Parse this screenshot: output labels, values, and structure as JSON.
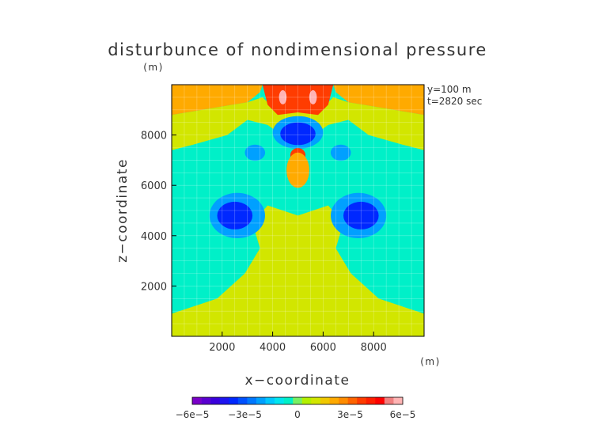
{
  "chart_data": {
    "type": "heatmap",
    "title": "disturbunce of nondimensional pressure",
    "xlabel": "x−coordinate",
    "ylabel": "z−coordinate",
    "x_unit": "(m)",
    "y_unit": "(m)",
    "annotations": [
      "y=100 m",
      "t=2820 sec"
    ],
    "xlim": [
      0,
      10000
    ],
    "ylim": [
      0,
      10000
    ],
    "x_ticks": [
      2000,
      4000,
      6000,
      8000
    ],
    "y_ticks": [
      2000,
      4000,
      6000,
      8000
    ],
    "x_tick_labels": [
      "2000",
      "4000",
      "6000",
      "8000"
    ],
    "y_tick_labels": [
      "2000",
      "4000",
      "6000",
      "8000"
    ],
    "grid": true,
    "colorbar": {
      "placement": "bottom",
      "levels": [
        -6e-05,
        -5.5e-05,
        -5e-05,
        -4.5e-05,
        -4e-05,
        -3.5e-05,
        -3e-05,
        -2.5e-05,
        -2e-05,
        -1.5e-05,
        -1e-05,
        -5e-06,
        0,
        5e-06,
        1e-05,
        1.5e-05,
        2e-05,
        2.5e-05,
        3e-05,
        3.5e-05,
        4e-05,
        4.5e-05,
        5e-05,
        5.5e-05,
        6e-05
      ],
      "colors": [
        "#7a00c8",
        "#5a00d0",
        "#3a00dc",
        "#1e14f0",
        "#0028ff",
        "#0050ff",
        "#0078ff",
        "#00a0ff",
        "#00c8ff",
        "#00e6f0",
        "#00f0c8",
        "#78f064",
        "#b4f000",
        "#d2e600",
        "#f0c800",
        "#ffaa00",
        "#ff8c00",
        "#ff6400",
        "#ff3c00",
        "#ff1e00",
        "#ff0000",
        "#f08080",
        "#ffb4b4"
      ],
      "tick_values": [
        -6e-05,
        -3e-05,
        0,
        3e-05,
        6e-05
      ],
      "tick_labels": [
        "−6e−5",
        "−3e−5",
        "0",
        "3e−5",
        "6e−5"
      ]
    },
    "regions": [
      {
        "name": "lime-bottom",
        "value": 5e-06,
        "shape": "polygon",
        "points": [
          [
            0,
            0
          ],
          [
            10000,
            0
          ],
          [
            10000,
            900
          ],
          [
            8200,
            1500
          ],
          [
            7100,
            2500
          ],
          [
            6500,
            3500
          ],
          [
            6800,
            4500
          ],
          [
            6200,
            5200
          ],
          [
            5600,
            5000
          ],
          [
            5000,
            4800
          ],
          [
            4400,
            5000
          ],
          [
            3800,
            5200
          ],
          [
            3200,
            4500
          ],
          [
            3500,
            3500
          ],
          [
            2900,
            2500
          ],
          [
            1800,
            1500
          ],
          [
            0,
            900
          ]
        ]
      },
      {
        "name": "lime-top",
        "value": 5e-06,
        "shape": "polygon",
        "points": [
          [
            0,
            7400
          ],
          [
            800,
            7600
          ],
          [
            2200,
            8000
          ],
          [
            3000,
            8600
          ],
          [
            3800,
            8400
          ],
          [
            4500,
            7900
          ],
          [
            5000,
            7500
          ],
          [
            5500,
            7900
          ],
          [
            6200,
            8400
          ],
          [
            7000,
            8600
          ],
          [
            7800,
            8000
          ],
          [
            9200,
            7600
          ],
          [
            10000,
            7400
          ],
          [
            10000,
            8800
          ],
          [
            8800,
            9000
          ],
          [
            7000,
            9300
          ],
          [
            6400,
            9500
          ],
          [
            6000,
            9100
          ],
          [
            5000,
            9200
          ],
          [
            4000,
            9100
          ],
          [
            3600,
            9500
          ],
          [
            3000,
            9300
          ],
          [
            1200,
            9000
          ],
          [
            0,
            8800
          ]
        ]
      },
      {
        "name": "orange-top",
        "value": 1.75e-05,
        "shape": "polygon",
        "points": [
          [
            0,
            8800
          ],
          [
            1200,
            9000
          ],
          [
            3000,
            9300
          ],
          [
            3500,
            9700
          ],
          [
            3600,
            10000
          ],
          [
            0,
            10000
          ]
        ]
      },
      {
        "name": "orange-top-right",
        "value": 1.75e-05,
        "shape": "polygon",
        "points": [
          [
            10000,
            8800
          ],
          [
            8800,
            9000
          ],
          [
            7000,
            9300
          ],
          [
            6500,
            9700
          ],
          [
            6400,
            10000
          ],
          [
            10000,
            10000
          ]
        ]
      },
      {
        "name": "red-plume",
        "value": 3e-05,
        "shape": "polygon",
        "points": [
          [
            3600,
            10000
          ],
          [
            3800,
            9200
          ],
          [
            4200,
            8800
          ],
          [
            5000,
            8900
          ],
          [
            5800,
            8800
          ],
          [
            6200,
            9200
          ],
          [
            6400,
            10000
          ]
        ]
      },
      {
        "name": "pink-core-left",
        "value": 5.5e-05,
        "shape": "ellipse",
        "cx": 4400,
        "cy": 9500,
        "rx": 150,
        "ry": 280
      },
      {
        "name": "pink-core-right",
        "value": 5.5e-05,
        "shape": "ellipse",
        "cx": 5600,
        "cy": 9500,
        "rx": 150,
        "ry": 280
      },
      {
        "name": "blue-cap",
        "value": -2.5e-05,
        "shape": "ellipse",
        "cx": 5000,
        "cy": 8100,
        "rx": 1000,
        "ry": 650
      },
      {
        "name": "darkblue-cap",
        "value": -4e-05,
        "shape": "ellipse",
        "cx": 5000,
        "cy": 8050,
        "rx": 700,
        "ry": 450
      },
      {
        "name": "red-blob",
        "value": 3e-05,
        "shape": "ellipse",
        "cx": 5000,
        "cy": 7200,
        "rx": 300,
        "ry": 280
      },
      {
        "name": "orange-stem",
        "value": 1.75e-05,
        "shape": "ellipse",
        "cx": 5000,
        "cy": 6600,
        "rx": 450,
        "ry": 700
      },
      {
        "name": "blue-lobe-left",
        "value": -2.5e-05,
        "shape": "ellipse",
        "cx": 2600,
        "cy": 4800,
        "rx": 1100,
        "ry": 900
      },
      {
        "name": "darkblue-lobe-left",
        "value": -4e-05,
        "shape": "ellipse",
        "cx": 2500,
        "cy": 4800,
        "rx": 700,
        "ry": 550
      },
      {
        "name": "blue-lobe-right",
        "value": -2.5e-05,
        "shape": "ellipse",
        "cx": 7400,
        "cy": 4800,
        "rx": 1100,
        "ry": 900
      },
      {
        "name": "darkblue-lobe-right",
        "value": -4e-05,
        "shape": "ellipse",
        "cx": 7500,
        "cy": 4800,
        "rx": 700,
        "ry": 550
      },
      {
        "name": "blue-eye-left",
        "value": -2.5e-05,
        "shape": "ellipse",
        "cx": 3300,
        "cy": 7300,
        "rx": 400,
        "ry": 320
      },
      {
        "name": "blue-eye-right",
        "value": -2.5e-05,
        "shape": "ellipse",
        "cx": 6700,
        "cy": 7300,
        "rx": 400,
        "ry": 320
      }
    ]
  }
}
